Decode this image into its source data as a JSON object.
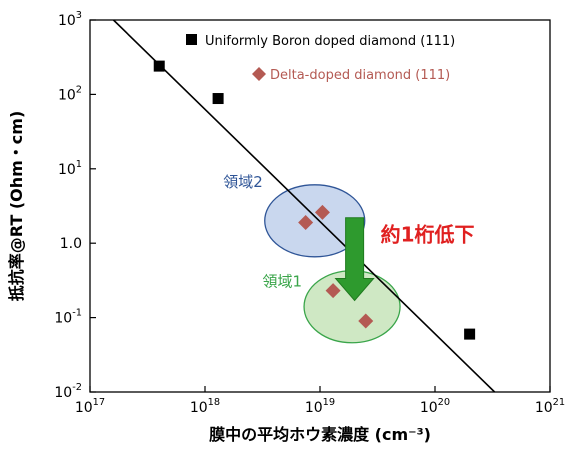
{
  "chart_data": {
    "type": "scatter",
    "xlabel": "膜中の平均ホウ素濃度 (cm⁻³)",
    "ylabel": "抵抗率@RT (Ohm・cm)",
    "x_scale": "log",
    "y_scale": "log",
    "xlim": [
      1e+17,
      1e+21
    ],
    "ylim": [
      0.01,
      1000
    ],
    "x_tick_labels": [
      {
        "base": "10",
        "exp": "17"
      },
      {
        "base": "10",
        "exp": "18"
      },
      {
        "base": "10",
        "exp": "19"
      },
      {
        "base": "10",
        "exp": "20"
      },
      {
        "base": "10",
        "exp": "21"
      }
    ],
    "y_tick_labels": [
      {
        "base": "10",
        "exp": "3"
      },
      {
        "base": "10",
        "exp": "2"
      },
      {
        "base": "10",
        "exp": "1"
      },
      {
        "base": "10",
        "exp": "0",
        "text": "1.0"
      },
      {
        "base": "10",
        "exp": "-1"
      },
      {
        "base": "10",
        "exp": "-2"
      }
    ],
    "series": [
      {
        "name": "Uniformly Boron doped diamond (111)",
        "marker": "square",
        "color": "#000000",
        "points": [
          {
            "x": 4e+17,
            "y": 240
          },
          {
            "x": 1.3e+18,
            "y": 88
          },
          {
            "x": 2e+20,
            "y": 0.06
          }
        ]
      },
      {
        "name": "Delta-doped diamond (111)",
        "marker": "diamond",
        "color": "#b45a53",
        "points": [
          {
            "x": 7.5e+18,
            "y": 1.9
          },
          {
            "x": 1.05e+19,
            "y": 2.6
          },
          {
            "x": 1.3e+19,
            "y": 0.23
          },
          {
            "x": 2.5e+19,
            "y": 0.09
          }
        ]
      }
    ],
    "fit_line": {
      "color": "#000000",
      "points": [
        {
          "x": 1.6e+17,
          "y": 1000
        },
        {
          "x": 3.3e+20,
          "y": 0.01
        }
      ]
    },
    "annotations": {
      "region2": {
        "label": "領域2",
        "color": "#2f5597",
        "fill": "#c9d7ee",
        "center": {
          "x": 9e+18,
          "y": 2.0
        }
      },
      "region1": {
        "label": "領域1",
        "color": "#3aa54a",
        "fill": "#cfe8c4",
        "center": {
          "x": 1.9e+19,
          "y": 0.14
        }
      },
      "arrow_text": {
        "label": "約1桁低下",
        "color": "#e02020"
      },
      "arrow": {
        "color": "#2e9a2e",
        "from": {
          "x": 2e+19,
          "y": 2.2
        },
        "to": {
          "x": 2e+19,
          "y": 0.17
        }
      }
    },
    "legend_position": "top-right",
    "grid": false
  }
}
